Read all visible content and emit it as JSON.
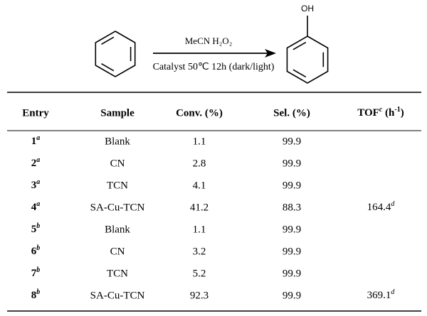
{
  "scheme": {
    "substituent": "OH",
    "above_arrow": "MeCN  H₂O₂",
    "below_arrow": "Catalyst 50℃ 12h (dark/light)"
  },
  "table": {
    "header": [
      "Entry",
      "Sample",
      "Conv. (%)",
      "Sel. (%)",
      {
        "text": "TOF",
        "note": "c",
        "unit_open": " (h",
        "unit_exp": "-1",
        "unit_close": ")"
      }
    ],
    "rows": [
      [
        {
          "number": 1,
          "note": "a"
        },
        "Blank",
        1.1,
        99.9,
        null
      ],
      [
        {
          "number": 2,
          "note": "a"
        },
        "CN",
        2.8,
        99.9,
        null
      ],
      [
        {
          "number": 3,
          "note": "a"
        },
        "TCN",
        4.1,
        99.9,
        null
      ],
      [
        {
          "number": 4,
          "note": "a"
        },
        "SA-Cu-TCN",
        41.2,
        88.3,
        {
          "value": 164.4,
          "note": "d"
        }
      ],
      [
        {
          "number": 5,
          "note": "b"
        },
        "Blank",
        1.1,
        99.9,
        null
      ],
      [
        {
          "number": 6,
          "note": "b"
        },
        "CN",
        3.2,
        99.9,
        null
      ],
      [
        {
          "number": 7,
          "note": "b"
        },
        "TCN",
        5.2,
        99.9,
        null
      ],
      [
        {
          "number": 8,
          "note": "b"
        },
        "SA-Cu-TCN",
        92.3,
        99.9,
        {
          "value": 369.1,
          "note": "d"
        }
      ]
    ]
  }
}
